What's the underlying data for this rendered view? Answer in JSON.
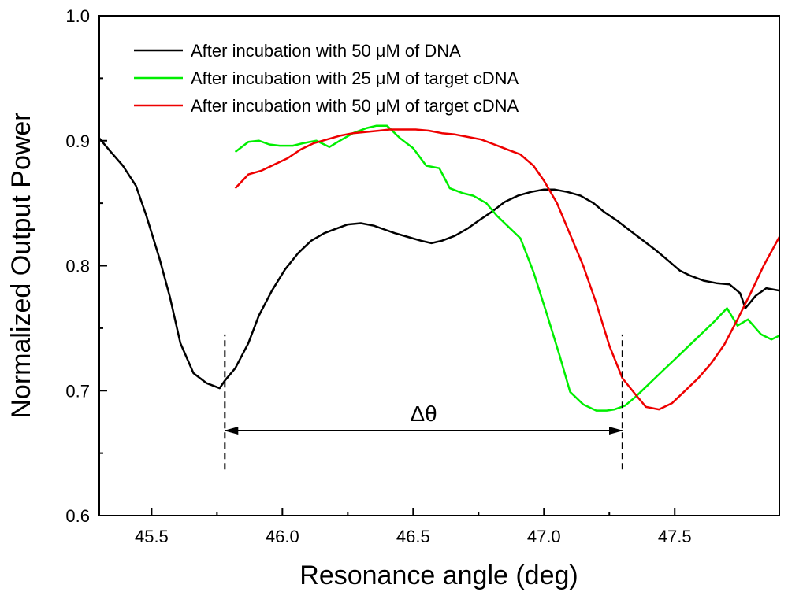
{
  "chart_data": {
    "type": "line",
    "title": "",
    "xlabel": "Resonance angle (deg)",
    "ylabel": "Normalized Output Power",
    "xlim": [
      45.3,
      47.9
    ],
    "ylim": [
      0.6,
      1.0
    ],
    "xticks": [
      45.5,
      46.0,
      46.5,
      47.0,
      47.5
    ],
    "xtick_labels": [
      "45.5",
      "46.0",
      "46.5",
      "47.0",
      "47.5"
    ],
    "yticks": [
      0.6,
      0.7,
      0.8,
      0.9,
      1.0
    ],
    "ytick_labels": [
      "0.6",
      "0.7",
      "0.8",
      "0.9",
      "1.0"
    ],
    "grid": false,
    "legend_position": "top-left",
    "series": [
      {
        "name": "After incubation with 50 μM of DNA",
        "color": "#000000",
        "x": [
          45.3,
          45.34,
          45.39,
          45.44,
          45.48,
          45.53,
          45.57,
          45.61,
          45.66,
          45.71,
          45.76,
          45.78,
          45.82,
          45.87,
          45.91,
          45.96,
          46.01,
          46.06,
          46.11,
          46.16,
          46.21,
          46.25,
          46.3,
          46.35,
          46.39,
          46.43,
          46.48,
          46.53,
          46.57,
          46.61,
          46.66,
          46.71,
          46.75,
          46.8,
          46.85,
          46.9,
          46.95,
          47.0,
          47.04,
          47.09,
          47.14,
          47.19,
          47.23,
          47.28,
          47.33,
          47.38,
          47.43,
          47.47,
          47.52,
          47.56,
          47.61,
          47.66,
          47.71,
          47.75,
          47.77,
          47.81,
          47.85,
          47.9
        ],
        "y": [
          0.902,
          0.892,
          0.88,
          0.864,
          0.84,
          0.806,
          0.775,
          0.738,
          0.714,
          0.706,
          0.702,
          0.708,
          0.718,
          0.738,
          0.76,
          0.78,
          0.797,
          0.81,
          0.82,
          0.826,
          0.83,
          0.833,
          0.834,
          0.832,
          0.829,
          0.826,
          0.823,
          0.82,
          0.818,
          0.82,
          0.824,
          0.83,
          0.836,
          0.843,
          0.851,
          0.856,
          0.859,
          0.861,
          0.861,
          0.859,
          0.856,
          0.85,
          0.843,
          0.836,
          0.828,
          0.82,
          0.812,
          0.805,
          0.796,
          0.792,
          0.788,
          0.786,
          0.785,
          0.778,
          0.766,
          0.776,
          0.782,
          0.78
        ]
      },
      {
        "name": "After incubation with 25 μM of target cDNA",
        "color": "#00ee00",
        "x": [
          45.82,
          45.87,
          45.91,
          45.95,
          45.99,
          46.04,
          46.08,
          46.13,
          46.18,
          46.22,
          46.27,
          46.32,
          46.36,
          46.4,
          46.45,
          46.5,
          46.55,
          46.6,
          46.64,
          46.69,
          46.73,
          46.78,
          46.82,
          46.86,
          46.91,
          46.96,
          47.01,
          47.06,
          47.1,
          47.15,
          47.2,
          47.24,
          47.27,
          47.31,
          47.35,
          47.4,
          47.45,
          47.5,
          47.55,
          47.6,
          47.65,
          47.7,
          47.74,
          47.78,
          47.83,
          47.87,
          47.9
        ],
        "y": [
          0.891,
          0.899,
          0.9,
          0.897,
          0.896,
          0.896,
          0.898,
          0.9,
          0.895,
          0.9,
          0.906,
          0.91,
          0.912,
          0.912,
          0.902,
          0.894,
          0.88,
          0.878,
          0.862,
          0.858,
          0.856,
          0.85,
          0.84,
          0.832,
          0.822,
          0.795,
          0.762,
          0.728,
          0.699,
          0.689,
          0.684,
          0.684,
          0.685,
          0.688,
          0.695,
          0.705,
          0.715,
          0.725,
          0.735,
          0.745,
          0.755,
          0.766,
          0.752,
          0.757,
          0.745,
          0.741,
          0.744
        ]
      },
      {
        "name": "After incubation with 50 μM of target cDNA",
        "color": "#ee0000",
        "x": [
          45.82,
          45.87,
          45.92,
          45.97,
          46.02,
          46.07,
          46.12,
          46.17,
          46.22,
          46.27,
          46.32,
          46.37,
          46.41,
          46.46,
          46.51,
          46.56,
          46.61,
          46.66,
          46.71,
          46.76,
          46.81,
          46.86,
          46.91,
          46.96,
          47.0,
          47.05,
          47.1,
          47.15,
          47.2,
          47.25,
          47.3,
          47.35,
          47.39,
          47.44,
          47.49,
          47.54,
          47.59,
          47.64,
          47.69,
          47.74,
          47.79,
          47.84,
          47.9
        ],
        "y": [
          0.862,
          0.873,
          0.876,
          0.881,
          0.886,
          0.893,
          0.898,
          0.901,
          0.904,
          0.906,
          0.907,
          0.908,
          0.909,
          0.909,
          0.909,
          0.908,
          0.906,
          0.905,
          0.903,
          0.901,
          0.897,
          0.893,
          0.889,
          0.88,
          0.868,
          0.85,
          0.825,
          0.8,
          0.77,
          0.736,
          0.71,
          0.697,
          0.687,
          0.685,
          0.69,
          0.7,
          0.71,
          0.722,
          0.737,
          0.757,
          0.778,
          0.8,
          0.823
        ]
      }
    ],
    "annotations": [
      {
        "type": "vertical-dashed-line",
        "x": 45.78,
        "y_from": 0.637,
        "y_to": 0.745
      },
      {
        "type": "vertical-dashed-line",
        "x": 47.3,
        "y_from": 0.637,
        "y_to": 0.745
      },
      {
        "type": "double-arrow",
        "x_from": 45.78,
        "x_to": 47.3,
        "y": 0.668,
        "label": "Δθ",
        "label_x": 46.54,
        "label_y": 0.683
      }
    ]
  }
}
